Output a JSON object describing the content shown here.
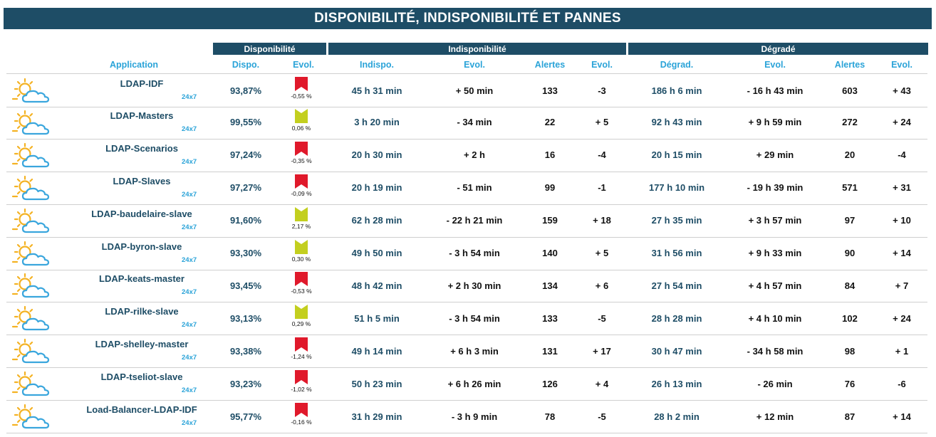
{
  "title": "DISPONIBILITÉ, INDISPONIBILITÉ ET PANNES",
  "groups": {
    "disponibilite": "Disponibilité",
    "indisponibilite": "Indisponibilité",
    "degrade": "Dégradé"
  },
  "columns": {
    "application": "Application",
    "dispo": "Dispo.",
    "evol1": "Evol.",
    "indispo": "Indispo.",
    "evol2": "Evol.",
    "alertes1": "Alertes",
    "evol3": "Evol.",
    "degrad": "Dégrad.",
    "evol4": "Evol.",
    "alertes2": "Alertes",
    "evol5": "Evol."
  },
  "colors": {
    "header_bg": "#1e4d66",
    "accent_blue": "#2aa3d8",
    "flag_red": "#e0192b",
    "flag_yellow": "#c3cf1f"
  },
  "rows": [
    {
      "name": "LDAP-IDF",
      "sla": "24x7",
      "weather_icon": "sun-cloud-icon",
      "dispo": "93,87%",
      "trend": "down",
      "trend_color": "red",
      "trend_pct": "-0,55 %",
      "indispo": "45 h 31 min",
      "indispo_evol": "+ 50 min",
      "alertes": "133",
      "alertes_evol": "-3",
      "degrad": "186 h 6 min",
      "degrad_evol": "- 16 h 43 min",
      "alertes2": "603",
      "alertes2_evol": "+ 43"
    },
    {
      "name": "LDAP-Masters",
      "sla": "24x7",
      "weather_icon": "sun-cloud-icon",
      "dispo": "99,55%",
      "trend": "up",
      "trend_color": "yellow",
      "trend_pct": "0,06 %",
      "indispo": "3 h 20 min",
      "indispo_evol": "- 34 min",
      "alertes": "22",
      "alertes_evol": "+ 5",
      "degrad": "92 h 43 min",
      "degrad_evol": "+ 9 h 59 min",
      "alertes2": "272",
      "alertes2_evol": "+ 24"
    },
    {
      "name": "LDAP-Scenarios",
      "sla": "24x7",
      "weather_icon": "sun-cloud-icon",
      "dispo": "97,24%",
      "trend": "down",
      "trend_color": "red",
      "trend_pct": "-0,35 %",
      "indispo": "20 h 30 min",
      "indispo_evol": "+ 2 h",
      "alertes": "16",
      "alertes_evol": "-4",
      "degrad": "20 h 15 min",
      "degrad_evol": "+ 29 min",
      "alertes2": "20",
      "alertes2_evol": "-4"
    },
    {
      "name": "LDAP-Slaves",
      "sla": "24x7",
      "weather_icon": "sun-cloud-icon",
      "dispo": "97,27%",
      "trend": "down",
      "trend_color": "red",
      "trend_pct": "-0,09 %",
      "indispo": "20 h 19 min",
      "indispo_evol": "- 51 min",
      "alertes": "99",
      "alertes_evol": "-1",
      "degrad": "177 h 10 min",
      "degrad_evol": "- 19 h 39 min",
      "alertes2": "571",
      "alertes2_evol": "+ 31"
    },
    {
      "name": "LDAP-baudelaire-slave",
      "sla": "24x7",
      "weather_icon": "sun-cloud-icon",
      "dispo": "91,60%",
      "trend": "up",
      "trend_color": "yellow",
      "trend_pct": "2,17 %",
      "indispo": "62 h 28 min",
      "indispo_evol": "- 22 h 21 min",
      "alertes": "159",
      "alertes_evol": "+ 18",
      "degrad": "27 h 35 min",
      "degrad_evol": "+ 3 h 57 min",
      "alertes2": "97",
      "alertes2_evol": "+ 10"
    },
    {
      "name": "LDAP-byron-slave",
      "sla": "24x7",
      "weather_icon": "sun-cloud-icon",
      "dispo": "93,30%",
      "trend": "up",
      "trend_color": "yellow",
      "trend_pct": "0,30 %",
      "indispo": "49 h 50 min",
      "indispo_evol": "- 3 h 54 min",
      "alertes": "140",
      "alertes_evol": "+ 5",
      "degrad": "31 h 56 min",
      "degrad_evol": "+ 9 h 33 min",
      "alertes2": "90",
      "alertes2_evol": "+ 14"
    },
    {
      "name": "LDAP-keats-master",
      "sla": "24x7",
      "weather_icon": "sun-cloud-icon",
      "dispo": "93,45%",
      "trend": "down",
      "trend_color": "red",
      "trend_pct": "-0,53 %",
      "indispo": "48 h 42 min",
      "indispo_evol": "+ 2 h 30 min",
      "alertes": "134",
      "alertes_evol": "+ 6",
      "degrad": "27 h 54 min",
      "degrad_evol": "+ 4 h 57 min",
      "alertes2": "84",
      "alertes2_evol": "+ 7"
    },
    {
      "name": "LDAP-rilke-slave",
      "sla": "24x7",
      "weather_icon": "sun-cloud-icon",
      "dispo": "93,13%",
      "trend": "up",
      "trend_color": "yellow",
      "trend_pct": "0,29 %",
      "indispo": "51 h 5 min",
      "indispo_evol": "- 3 h 54 min",
      "alertes": "133",
      "alertes_evol": "-5",
      "degrad": "28 h 28 min",
      "degrad_evol": "+ 4 h 10 min",
      "alertes2": "102",
      "alertes2_evol": "+ 24"
    },
    {
      "name": "LDAP-shelley-master",
      "sla": "24x7",
      "weather_icon": "sun-cloud-icon",
      "dispo": "93,38%",
      "trend": "down",
      "trend_color": "red",
      "trend_pct": "-1,24 %",
      "indispo": "49 h 14 min",
      "indispo_evol": "+ 6 h 3 min",
      "alertes": "131",
      "alertes_evol": "+ 17",
      "degrad": "30 h 47 min",
      "degrad_evol": "- 34 h 58 min",
      "alertes2": "98",
      "alertes2_evol": "+ 1"
    },
    {
      "name": "LDAP-tseliot-slave",
      "sla": "24x7",
      "weather_icon": "sun-cloud-icon",
      "dispo": "93,23%",
      "trend": "down",
      "trend_color": "red",
      "trend_pct": "-1,02 %",
      "indispo": "50 h 23 min",
      "indispo_evol": "+ 6 h 26 min",
      "alertes": "126",
      "alertes_evol": "+ 4",
      "degrad": "26 h 13 min",
      "degrad_evol": "- 26 min",
      "alertes2": "76",
      "alertes2_evol": "-6"
    },
    {
      "name": "Load-Balancer-LDAP-IDF",
      "sla": "24x7",
      "weather_icon": "sun-cloud-icon",
      "dispo": "95,77%",
      "trend": "down",
      "trend_color": "red",
      "trend_pct": "-0,16 %",
      "indispo": "31 h 29 min",
      "indispo_evol": "- 3 h 9 min",
      "alertes": "78",
      "alertes_evol": "-5",
      "degrad": "28 h 2 min",
      "degrad_evol": "+ 12 min",
      "alertes2": "87",
      "alertes2_evol": "+ 14"
    }
  ]
}
